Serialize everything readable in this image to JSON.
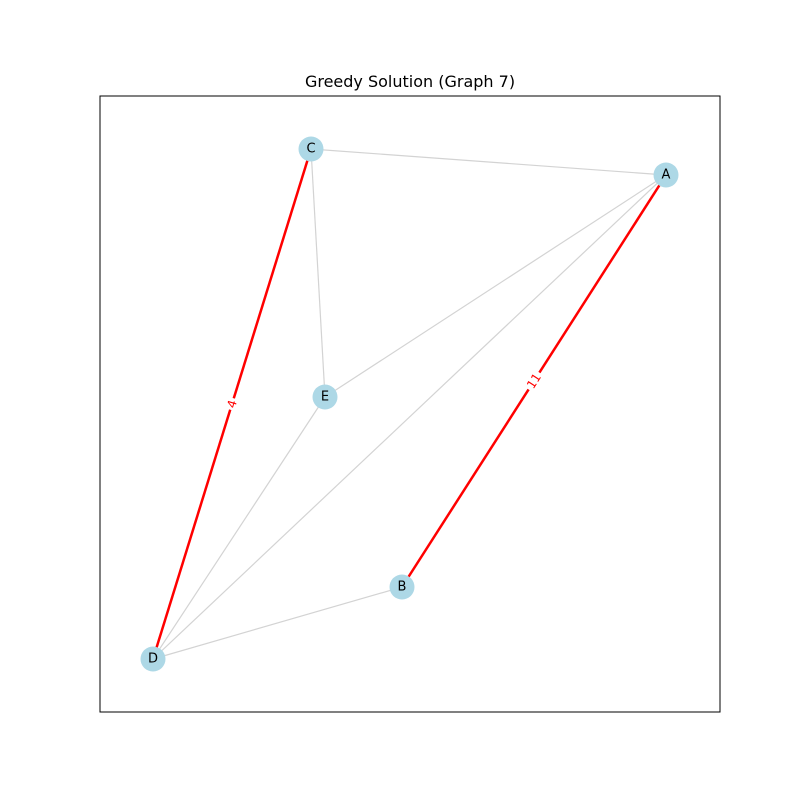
{
  "title": "Greedy Solution (Graph 7)",
  "colors": {
    "node_fill": "#add8e6",
    "plain_edge": "#d3d3d3",
    "highlight_edge": "#ff0000",
    "frame": "#000000"
  },
  "graph": {
    "nodes": [
      {
        "id": "A",
        "label": "A"
      },
      {
        "id": "B",
        "label": "B"
      },
      {
        "id": "C",
        "label": "C"
      },
      {
        "id": "D",
        "label": "D"
      },
      {
        "id": "E",
        "label": "E"
      }
    ],
    "edges": [
      {
        "source": "C",
        "target": "A",
        "highlighted": false,
        "label": ""
      },
      {
        "source": "C",
        "target": "E",
        "highlighted": false,
        "label": ""
      },
      {
        "source": "A",
        "target": "E",
        "highlighted": false,
        "label": ""
      },
      {
        "source": "A",
        "target": "D",
        "highlighted": false,
        "label": ""
      },
      {
        "source": "E",
        "target": "D",
        "highlighted": false,
        "label": ""
      },
      {
        "source": "D",
        "target": "B",
        "highlighted": false,
        "label": ""
      },
      {
        "source": "C",
        "target": "D",
        "highlighted": true,
        "label": "4"
      },
      {
        "source": "A",
        "target": "B",
        "highlighted": true,
        "label": "11"
      }
    ]
  }
}
